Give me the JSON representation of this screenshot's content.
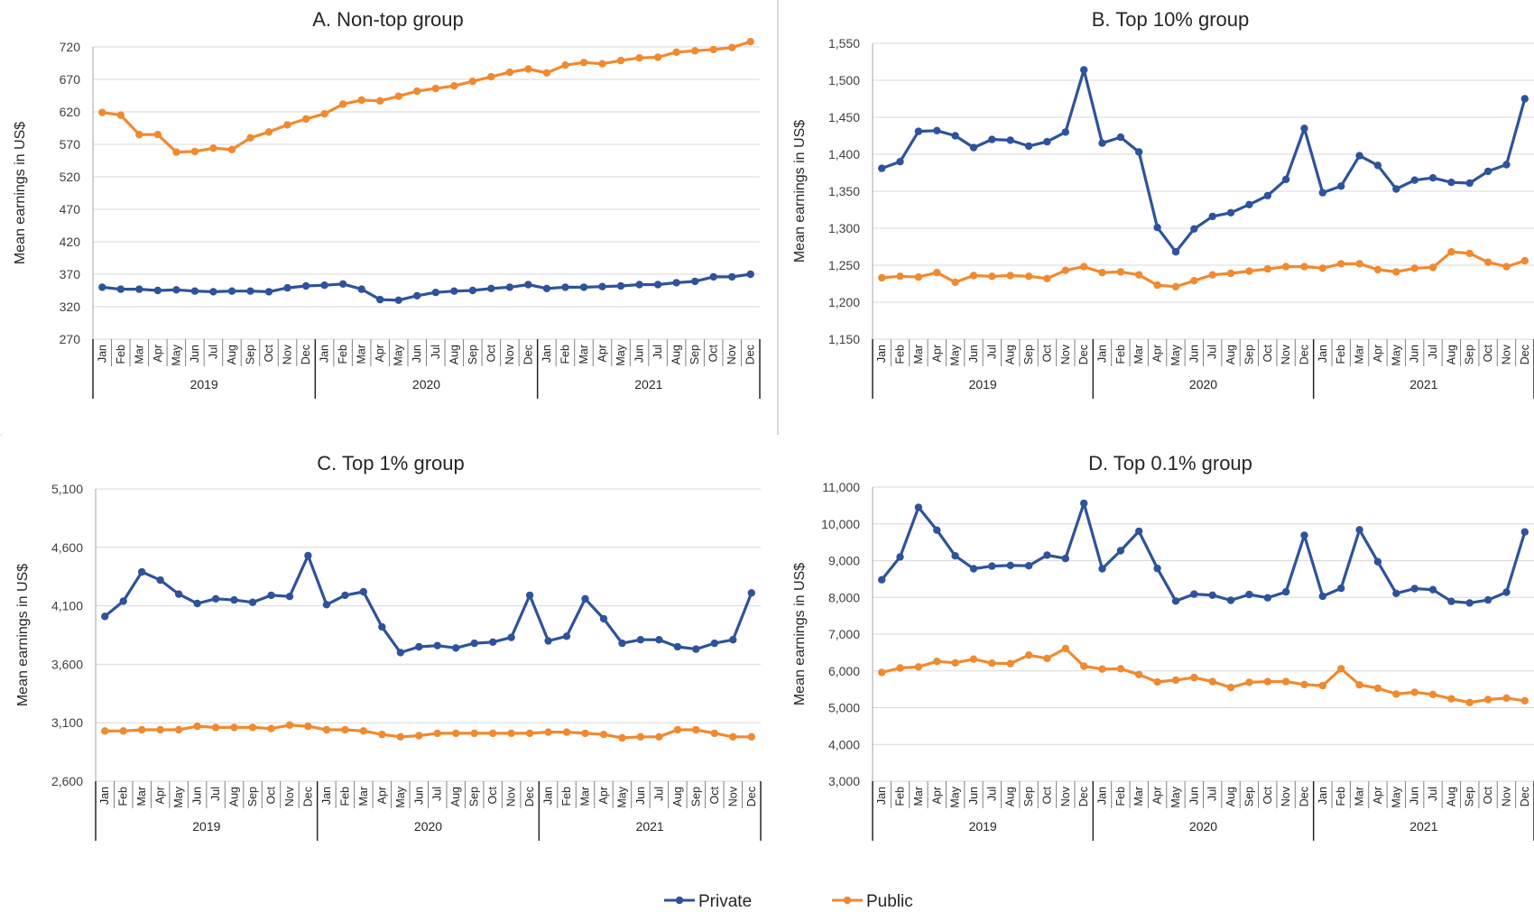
{
  "legend": {
    "placement": "bottom-center",
    "items": [
      {
        "label": "Private",
        "color": "#2E539B"
      },
      {
        "label": "Public",
        "color": "#F08A30"
      }
    ]
  },
  "chart_data": [
    {
      "type": "line",
      "title": "A. Non-top group",
      "ylabel": "Mean earnings in US$",
      "ylim": [
        270,
        720
      ],
      "yticks": [
        270,
        320,
        370,
        420,
        470,
        520,
        570,
        620,
        670,
        720
      ],
      "ytick_labels": [
        "270",
        "320",
        "370",
        "420",
        "470",
        "520",
        "570",
        "620",
        "670",
        "720"
      ],
      "grid": true,
      "months": [
        "Jan",
        "Feb",
        "Mar",
        "Apr",
        "May",
        "Jun",
        "Jul",
        "Aug",
        "Sep",
        "Oct",
        "Nov",
        "Dec"
      ],
      "years": [
        "2019",
        "2020",
        "2021"
      ],
      "series": [
        {
          "name": "Private",
          "color": "#2E539B",
          "values": [
            350,
            347,
            347,
            345,
            346,
            344,
            343,
            344,
            344,
            343,
            349,
            352,
            353,
            355,
            347,
            331,
            330,
            337,
            342,
            344,
            345,
            348,
            350,
            354,
            348,
            350,
            350,
            351,
            352,
            354,
            354,
            357,
            359,
            366,
            366,
            370
          ]
        },
        {
          "name": "Public",
          "color": "#F08A30",
          "values": [
            619,
            615,
            585,
            585,
            558,
            559,
            564,
            562,
            580,
            589,
            600,
            609,
            617,
            632,
            638,
            637,
            644,
            652,
            656,
            660,
            667,
            674,
            681,
            686,
            680,
            692,
            696,
            694,
            699,
            703,
            704,
            712,
            714,
            716,
            719,
            728
          ]
        }
      ]
    },
    {
      "type": "line",
      "title": "B. Top 10% group",
      "ylabel": "Mean earnings in US$",
      "ylim": [
        1150,
        1550
      ],
      "yticks": [
        1150,
        1200,
        1250,
        1300,
        1350,
        1400,
        1450,
        1500,
        1550
      ],
      "ytick_labels": [
        "1,150",
        "1,200",
        "1,250",
        "1,300",
        "1,350",
        "1,400",
        "1,450",
        "1,500",
        "1,550"
      ],
      "grid": true,
      "months": [
        "Jan",
        "Feb",
        "Mar",
        "Apr",
        "May",
        "Jun",
        "Jul",
        "Aug",
        "Sep",
        "Oct",
        "Nov",
        "Dec"
      ],
      "years": [
        "2019",
        "2020",
        "2021"
      ],
      "series": [
        {
          "name": "Private",
          "color": "#2E539B",
          "values": [
            1381,
            1390,
            1431,
            1432,
            1425,
            1409,
            1420,
            1419,
            1411,
            1417,
            1430,
            1514,
            1415,
            1423,
            1403,
            1301,
            1268,
            1299,
            1316,
            1321,
            1332,
            1344,
            1366,
            1435,
            1348,
            1357,
            1398,
            1385,
            1353,
            1365,
            1368,
            1362,
            1361,
            1377,
            1386,
            1475
          ]
        },
        {
          "name": "Public",
          "color": "#F08A30",
          "values": [
            1233,
            1235,
            1234,
            1240,
            1227,
            1236,
            1235,
            1236,
            1235,
            1232,
            1243,
            1248,
            1240,
            1241,
            1237,
            1223,
            1221,
            1229,
            1237,
            1239,
            1242,
            1245,
            1248,
            1248,
            1246,
            1252,
            1252,
            1244,
            1241,
            1246,
            1247,
            1268,
            1266,
            1254,
            1248,
            1256
          ]
        }
      ]
    },
    {
      "type": "line",
      "title": "C. Top 1% group",
      "ylabel": "Mean earnings in US$",
      "ylim": [
        2600,
        5100
      ],
      "yticks": [
        2600,
        3100,
        3600,
        4100,
        4600,
        5100
      ],
      "ytick_labels": [
        "2,600",
        "3,100",
        "3,600",
        "4,100",
        "4,600",
        "5,100"
      ],
      "grid": true,
      "months": [
        "Jan",
        "Feb",
        "Mar",
        "Apr",
        "May",
        "Jun",
        "Jul",
        "Aug",
        "Sep",
        "Oct",
        "Nov",
        "Dec"
      ],
      "years": [
        "2019",
        "2020",
        "2021"
      ],
      "series": [
        {
          "name": "Private",
          "color": "#2E539B",
          "values": [
            4010,
            4140,
            4390,
            4320,
            4200,
            4120,
            4160,
            4150,
            4130,
            4190,
            4180,
            4530,
            4110,
            4190,
            4220,
            3920,
            3700,
            3750,
            3760,
            3740,
            3780,
            3790,
            3830,
            4190,
            3800,
            3840,
            4160,
            3990,
            3780,
            3810,
            3810,
            3750,
            3730,
            3780,
            3810,
            4210
          ]
        },
        {
          "name": "Public",
          "color": "#F08A30",
          "values": [
            3030,
            3030,
            3040,
            3040,
            3040,
            3070,
            3060,
            3060,
            3060,
            3050,
            3080,
            3070,
            3040,
            3040,
            3030,
            3000,
            2980,
            2990,
            3010,
            3010,
            3010,
            3010,
            3010,
            3010,
            3020,
            3020,
            3010,
            3000,
            2970,
            2980,
            2980,
            3040,
            3040,
            3010,
            2980,
            2980
          ]
        }
      ]
    },
    {
      "type": "line",
      "title": "D. Top 0.1% group",
      "ylabel": "Mean earnings in US$",
      "ylim": [
        3000,
        11000
      ],
      "yticks": [
        3000,
        4000,
        5000,
        6000,
        7000,
        8000,
        9000,
        10000,
        11000
      ],
      "ytick_labels": [
        "3,000",
        "4,000",
        "5,000",
        "6,000",
        "7,000",
        "8,000",
        "9,000",
        "10,000",
        "11,000"
      ],
      "grid": true,
      "months": [
        "Jan",
        "Feb",
        "Mar",
        "Apr",
        "May",
        "Jun",
        "Jul",
        "Aug",
        "Sep",
        "Oct",
        "Nov",
        "Dec"
      ],
      "years": [
        "2019",
        "2020",
        "2021"
      ],
      "series": [
        {
          "name": "Private",
          "color": "#2E539B",
          "values": [
            8480,
            9100,
            10450,
            9830,
            9130,
            8780,
            8850,
            8870,
            8860,
            9150,
            9060,
            10560,
            8780,
            9270,
            9800,
            8790,
            7900,
            8090,
            8060,
            7920,
            8080,
            7990,
            8150,
            9690,
            8030,
            8250,
            9840,
            8970,
            8110,
            8240,
            8210,
            7890,
            7850,
            7930,
            8140,
            9780
          ]
        },
        {
          "name": "Public",
          "color": "#F08A30",
          "values": [
            5960,
            6080,
            6110,
            6260,
            6220,
            6320,
            6210,
            6200,
            6430,
            6340,
            6610,
            6130,
            6050,
            6060,
            5900,
            5700,
            5750,
            5820,
            5710,
            5550,
            5690,
            5710,
            5710,
            5630,
            5600,
            6060,
            5620,
            5530,
            5370,
            5420,
            5360,
            5240,
            5140,
            5220,
            5260,
            5190
          ]
        }
      ]
    }
  ]
}
